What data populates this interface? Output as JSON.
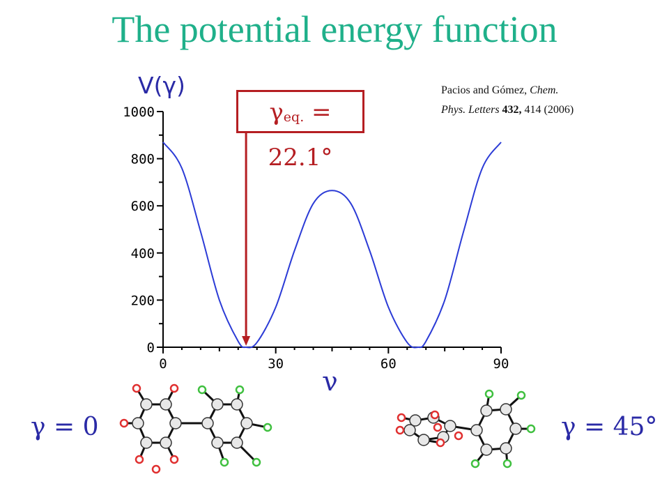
{
  "title": "The potential energy function",
  "citation": {
    "authors": "Pacios and Gómez,",
    "journal_a": "Chem.",
    "journal_b": "Phys. Letters",
    "volume": "432,",
    "pages_year": "414 (2006)"
  },
  "equilibrium": {
    "symbol": "γ",
    "subscript": "eq.",
    "value_text": "= 22.1°",
    "value": 22.1
  },
  "structure_labels": {
    "left": "γ = 0",
    "right": "γ = 45°"
  },
  "colors": {
    "title": "#1fb08a",
    "curve": "#2b3bd6",
    "annotation": "#b51e22",
    "gamma_label": "#2a2aa6",
    "oxygen_atom": "#e03030",
    "hydrogen_atom": "#40c040"
  },
  "chart_data": {
    "type": "line",
    "ylabel": "V(γ)",
    "xlabel": "γ",
    "xlim": [
      0,
      90
    ],
    "ylim": [
      0,
      1000
    ],
    "xticks": [
      0,
      30,
      60,
      90
    ],
    "yticks": [
      0,
      200,
      400,
      600,
      800,
      1000
    ],
    "grid": false,
    "series": [
      {
        "x": [
          0,
          5,
          10,
          15,
          20,
          22.1,
          25,
          30,
          35,
          40,
          45,
          50,
          55,
          60,
          65,
          67.9,
          70,
          75,
          80,
          85,
          90
        ],
        "values": [
          870,
          760,
          490,
          200,
          25,
          0,
          20,
          170,
          410,
          610,
          665,
          610,
          410,
          170,
          20,
          0,
          25,
          200,
          490,
          760,
          870
        ]
      }
    ]
  }
}
